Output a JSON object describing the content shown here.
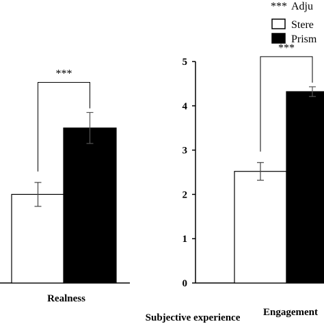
{
  "chart_data": {
    "type": "bar",
    "xlabel": "Subjective experience",
    "legend": {
      "position": "top-right",
      "entries": [
        {
          "marker": "***",
          "label": "Adju"
        },
        {
          "marker": "white-box",
          "label": "Stere"
        },
        {
          "marker": "black-box",
          "label": "Prism"
        }
      ]
    },
    "series_colors": [
      "#ffffff",
      "#000000"
    ],
    "panels": [
      {
        "category": "Realness",
        "values": [
          2.0,
          3.5
        ],
        "errors": [
          0.27,
          0.35
        ],
        "significance": "***"
      },
      {
        "category": "Engagement",
        "ylim": [
          0,
          5
        ],
        "yticks": [
          "0",
          "1",
          "2",
          "3",
          "4",
          "5"
        ],
        "values": [
          2.52,
          4.32
        ],
        "errors": [
          0.2,
          0.11
        ],
        "significance": "***"
      }
    ]
  }
}
